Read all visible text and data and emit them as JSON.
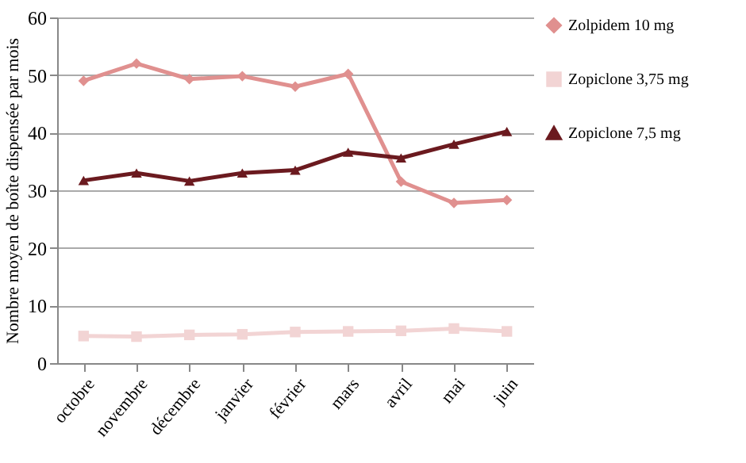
{
  "chart_data": {
    "type": "line",
    "ylabel": "Nombre moyen de boîte dispensée par mois",
    "categories": [
      "octobre",
      "novembre",
      "décembre",
      "janvier",
      "février",
      "mars",
      "avril",
      "mai",
      "juin"
    ],
    "series": [
      {
        "name": "Zolpidem 10 mg",
        "color": "#e0908f",
        "marker": "diamond",
        "values": [
          49,
          52,
          49.3,
          49.8,
          48,
          50.2,
          31.5,
          27.8,
          28.3
        ]
      },
      {
        "name": "Zopiclone 3,75 mg",
        "color": "#f2d4d4",
        "marker": "square",
        "values": [
          4.7,
          4.6,
          4.9,
          5.0,
          5.4,
          5.5,
          5.6,
          6.0,
          5.5
        ]
      },
      {
        "name": "Zopiclone 7,5 mg",
        "color": "#6b1a1f",
        "marker": "triangle",
        "values": [
          31.7,
          33,
          31.6,
          33,
          33.5,
          36.6,
          35.6,
          38,
          40.2
        ]
      }
    ],
    "ylim": [
      0,
      60
    ],
    "yticks": [
      0,
      10,
      20,
      30,
      40,
      50,
      60
    ],
    "grid": "y",
    "legend": "right",
    "line_style": "solid"
  }
}
